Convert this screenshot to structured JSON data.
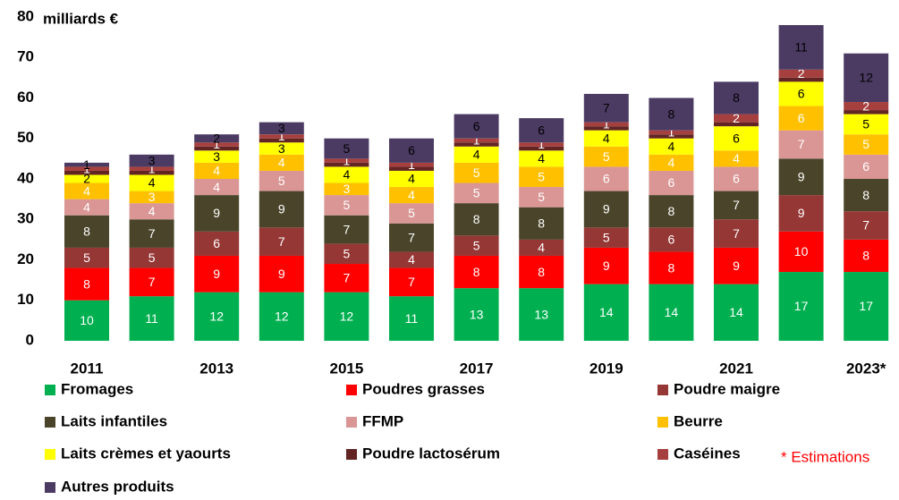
{
  "chart_data": {
    "type": "stacked_bar",
    "y_axis_label": "milliards €",
    "annotation": "* Estimations",
    "categories": [
      "2011",
      null,
      "2013",
      null,
      "2015",
      null,
      "2017",
      null,
      "2019",
      null,
      "2021",
      null,
      "2023*"
    ],
    "ylim": [
      0,
      80
    ],
    "yticks": [
      0,
      10,
      20,
      30,
      40,
      50,
      60,
      70,
      80
    ],
    "grid": false,
    "series": [
      {
        "name": "Fromages",
        "color": "#00b050",
        "label_color": "#ffffff",
        "values": [
          10,
          11,
          12,
          12,
          12,
          11,
          13,
          13,
          14,
          14,
          14,
          17,
          17
        ]
      },
      {
        "name": "Poudres grasses",
        "color": "#ff0000",
        "label_color": "#ffffff",
        "values": [
          8,
          7,
          9,
          9,
          7,
          7,
          8,
          8,
          9,
          8,
          9,
          10,
          8
        ]
      },
      {
        "name": "Poudre maigre",
        "color": "#953735",
        "label_color": "#ffffff",
        "values": [
          5,
          5,
          6,
          7,
          5,
          4,
          5,
          4,
          5,
          6,
          7,
          9,
          7
        ]
      },
      {
        "name": "Laits infantiles",
        "color": "#4a452a",
        "label_color": "#ffffff",
        "values": [
          8,
          7,
          9,
          9,
          7,
          7,
          8,
          8,
          9,
          8,
          7,
          9,
          8
        ]
      },
      {
        "name": "FFMP",
        "color": "#d99694",
        "label_color": "#ffffff",
        "values": [
          4,
          4,
          4,
          5,
          5,
          5,
          5,
          5,
          6,
          6,
          6,
          7,
          6
        ]
      },
      {
        "name": "Beurre",
        "color": "#ffc000",
        "label_color": "#ffffff",
        "values": [
          4,
          3,
          4,
          4,
          3,
          4,
          5,
          5,
          5,
          4,
          4,
          6,
          5
        ]
      },
      {
        "name": "Laits crèmes et yaourts",
        "color": "#ffff00",
        "label_color": "#000000",
        "values": [
          2,
          4,
          3,
          3,
          4,
          4,
          4,
          4,
          4,
          4,
          6,
          6,
          5
        ]
      },
      {
        "name": "Poudre lactosérum",
        "color": "#632523",
        "label_color": "#ffffff",
        "data_labels": false,
        "values": [
          1,
          1,
          1,
          1,
          1,
          1,
          1,
          1,
          1,
          1,
          1,
          1,
          1
        ]
      },
      {
        "name": "Caséines",
        "color": "#a5403e",
        "label_color": "#ffffff",
        "values": [
          1,
          1,
          1,
          1,
          1,
          1,
          1,
          1,
          1,
          1,
          2,
          2,
          2
        ]
      },
      {
        "name": "Autres produits",
        "color": "#4b3b63",
        "label_color": "#000000",
        "values": [
          1,
          3,
          2,
          3,
          5,
          6,
          6,
          6,
          7,
          8,
          8,
          11,
          12
        ]
      }
    ]
  }
}
